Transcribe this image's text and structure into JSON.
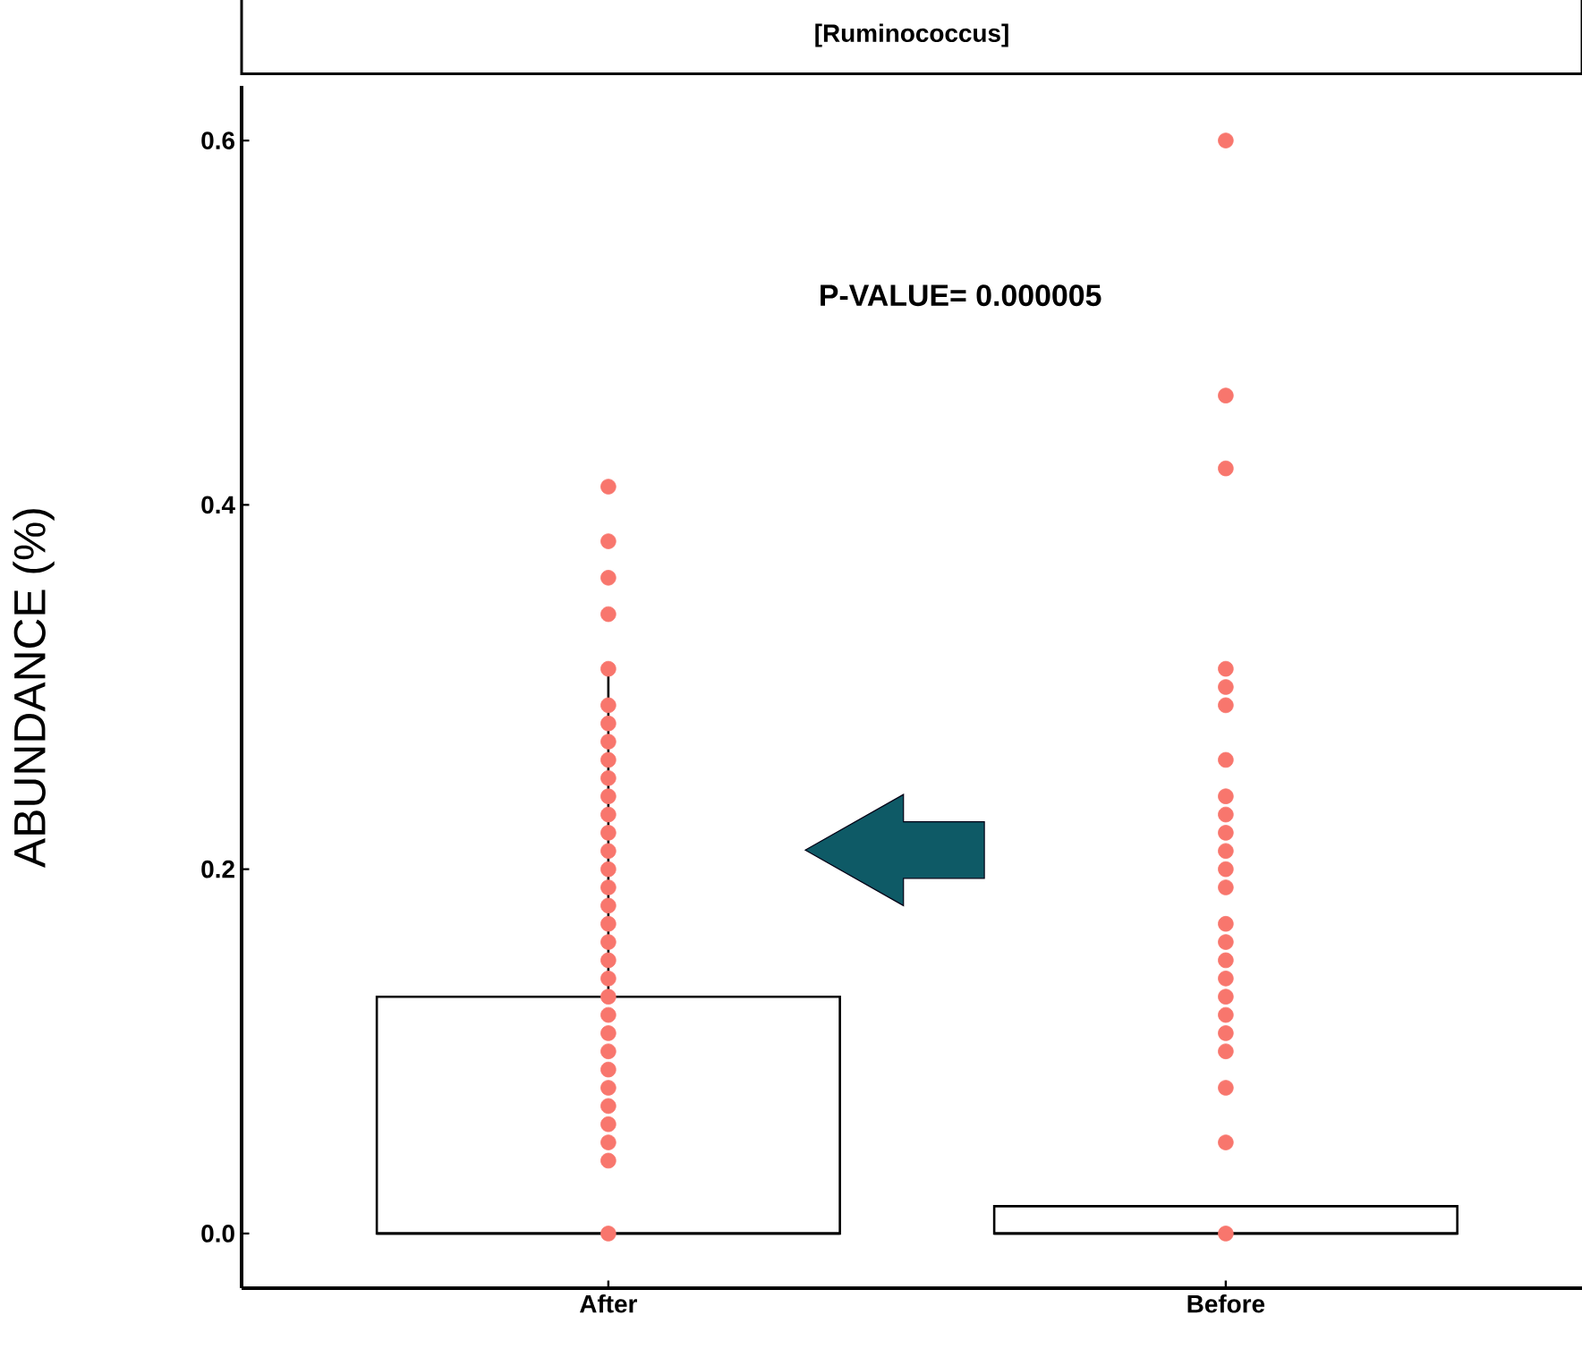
{
  "chart_data": {
    "type": "box",
    "title": "[Ruminococcus]",
    "ylabel": "ABUNDANCE (%)",
    "categories": [
      "After",
      "Before"
    ],
    "boxes": [
      {
        "low": 0,
        "q1": 0,
        "median": 0,
        "q3": 0.13,
        "high": 0.31
      },
      {
        "low": 0,
        "q1": 0,
        "median": 0,
        "q3": 0.015,
        "high": 0.015
      }
    ],
    "series": [
      {
        "type": "scatter",
        "color": "#f8766d",
        "x": [
          "After",
          "After",
          "After",
          "After",
          "After",
          "After",
          "After",
          "After",
          "After",
          "After",
          "After",
          "After",
          "After",
          "After",
          "After",
          "After",
          "After",
          "After",
          "After",
          "After",
          "After",
          "After",
          "After",
          "After",
          "After",
          "After",
          "After",
          "After",
          "After",
          "After",
          "After",
          "After"
        ],
        "values": [
          0.41,
          0.38,
          0.36,
          0.34,
          0.31,
          0.29,
          0.28,
          0.27,
          0.26,
          0.25,
          0.24,
          0.23,
          0.22,
          0.21,
          0.2,
          0.19,
          0.18,
          0.17,
          0.16,
          0.15,
          0.14,
          0.13,
          0.12,
          0.11,
          0.1,
          0.09,
          0.08,
          0.07,
          0.06,
          0.05,
          0.04,
          0
        ]
      },
      {
        "type": "scatter",
        "color": "#f8766d",
        "x": [
          "Before",
          "Before",
          "Before",
          "Before",
          "Before",
          "Before",
          "Before",
          "Before",
          "Before",
          "Before",
          "Before",
          "Before",
          "Before",
          "Before",
          "Before",
          "Before",
          "Before",
          "Before",
          "Before",
          "Before",
          "Before",
          "Before",
          "Before",
          "Before"
        ],
        "values": [
          0.6,
          0.46,
          0.42,
          0.31,
          0.3,
          0.29,
          0.26,
          0.24,
          0.23,
          0.22,
          0.21,
          0.2,
          0.19,
          0.17,
          0.16,
          0.15,
          0.14,
          0.13,
          0.12,
          0.11,
          0.1,
          0.08,
          0.05,
          0
        ]
      }
    ],
    "annotations": [
      "P-VALUE= 0.000005"
    ],
    "ylim": [
      -0.03,
      0.63
    ],
    "yticks": [
      {
        "value": 0,
        "label": "0.0"
      },
      {
        "value": 0.2,
        "label": "0.2"
      },
      {
        "value": 0.4,
        "label": "0.4"
      },
      {
        "value": 0.6,
        "label": "0.6"
      }
    ],
    "marker": "circle"
  }
}
